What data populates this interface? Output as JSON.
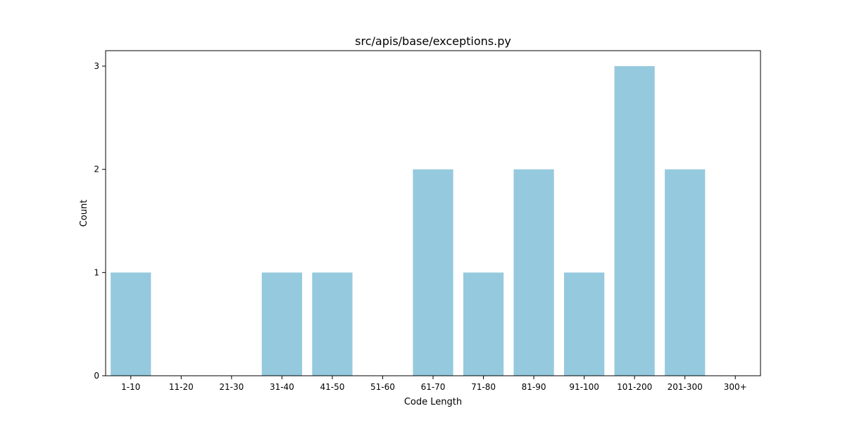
{
  "chart_data": {
    "type": "bar",
    "title": "src/apis/base/exceptions.py",
    "xlabel": "Code Length",
    "ylabel": "Count",
    "categories": [
      "1-10",
      "11-20",
      "21-30",
      "31-40",
      "41-50",
      "51-60",
      "61-70",
      "71-80",
      "81-90",
      "91-100",
      "101-200",
      "201-300",
      "300+"
    ],
    "values": [
      1,
      0,
      0,
      1,
      1,
      0,
      2,
      1,
      2,
      1,
      3,
      2,
      0
    ],
    "ylim": [
      0,
      3.15
    ],
    "yticks": [
      0,
      1,
      2,
      3
    ],
    "grid": false,
    "colors": {
      "bar": "#95c9de",
      "axis": "#000000",
      "background": "#ffffff"
    }
  }
}
